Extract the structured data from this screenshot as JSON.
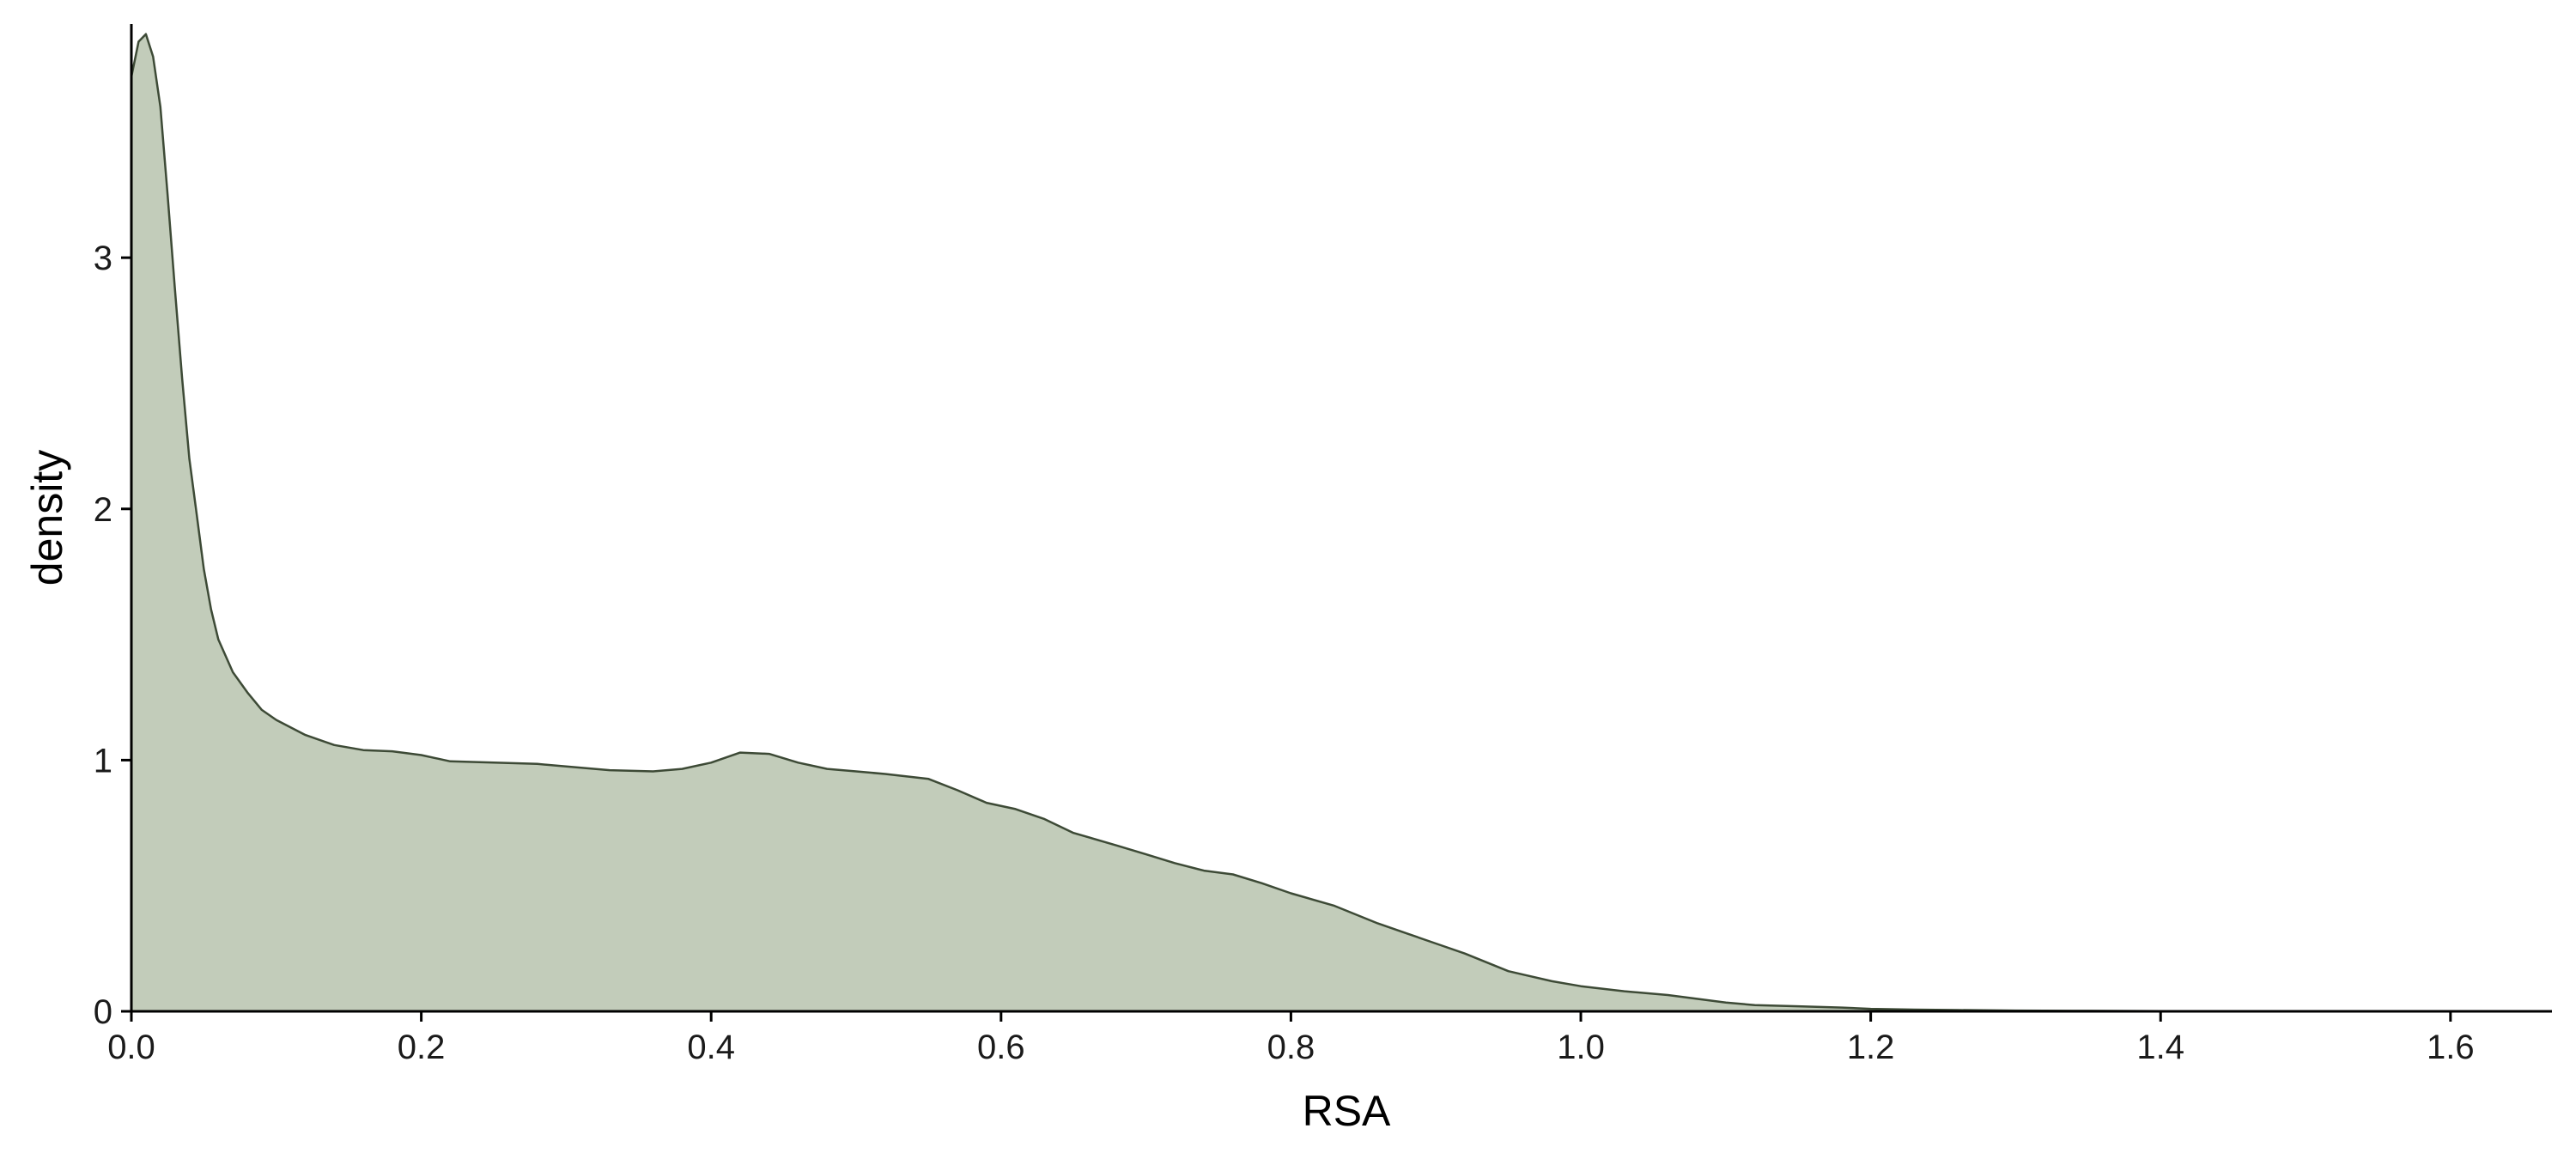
{
  "chart_data": {
    "type": "area",
    "title": "",
    "xlabel": "RSA",
    "ylabel": "density",
    "xlim": [
      0,
      1.67
    ],
    "ylim": [
      0,
      3.93
    ],
    "x_ticks": [
      0.0,
      0.2,
      0.4,
      0.6,
      0.8,
      1.0,
      1.2,
      1.4,
      1.6
    ],
    "x_tick_labels": [
      "0.0",
      "0.2",
      "0.4",
      "0.6",
      "0.8",
      "1.0",
      "1.2",
      "1.4",
      "1.6"
    ],
    "y_ticks": [
      0,
      1,
      2,
      3
    ],
    "y_tick_labels": [
      "0",
      "1",
      "2",
      "3"
    ],
    "grid": false,
    "legend": "none",
    "fill_color": "#c2ccba",
    "line_color": "#3d4a36",
    "axis_color": "#000000",
    "series": [
      {
        "x": [
          0.0,
          0.005,
          0.01,
          0.015,
          0.02,
          0.025,
          0.03,
          0.035,
          0.04,
          0.045,
          0.05,
          0.055,
          0.06,
          0.07,
          0.08,
          0.09,
          0.1,
          0.12,
          0.14,
          0.16,
          0.18,
          0.2,
          0.22,
          0.25,
          0.28,
          0.3,
          0.33,
          0.36,
          0.38,
          0.4,
          0.42,
          0.44,
          0.46,
          0.48,
          0.5,
          0.52,
          0.55,
          0.57,
          0.59,
          0.61,
          0.63,
          0.65,
          0.68,
          0.7,
          0.72,
          0.74,
          0.76,
          0.78,
          0.8,
          0.83,
          0.86,
          0.88,
          0.9,
          0.92,
          0.95,
          0.98,
          1.0,
          1.03,
          1.06,
          1.08,
          1.1,
          1.12,
          1.15,
          1.18,
          1.2,
          1.23,
          1.26,
          1.3,
          1.35,
          1.4,
          1.5,
          1.6,
          1.67
        ],
        "y": [
          3.72,
          3.86,
          3.89,
          3.8,
          3.6,
          3.25,
          2.88,
          2.52,
          2.2,
          1.98,
          1.76,
          1.6,
          1.48,
          1.35,
          1.27,
          1.2,
          1.16,
          1.1,
          1.06,
          1.04,
          1.035,
          1.02,
          0.995,
          0.99,
          0.985,
          0.975,
          0.96,
          0.955,
          0.965,
          0.99,
          1.03,
          1.025,
          0.99,
          0.965,
          0.955,
          0.945,
          0.925,
          0.88,
          0.83,
          0.805,
          0.765,
          0.71,
          0.66,
          0.625,
          0.59,
          0.56,
          0.545,
          0.51,
          0.47,
          0.42,
          0.35,
          0.31,
          0.27,
          0.23,
          0.16,
          0.12,
          0.1,
          0.08,
          0.065,
          0.05,
          0.035,
          0.025,
          0.02,
          0.015,
          0.01,
          0.007,
          0.005,
          0.003,
          0.002,
          0.001,
          0.0,
          0.0,
          0.0
        ]
      }
    ]
  }
}
